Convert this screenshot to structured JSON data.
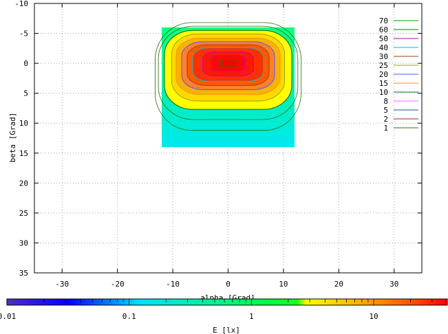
{
  "chart_data": {
    "type": "heatmap",
    "xlabel": "alpha [Grad]",
    "ylabel": "beta [Grad]",
    "xlim": [
      -35,
      35
    ],
    "ylim": [
      -10,
      35
    ],
    "y_reversed": true,
    "x_ticks": [
      -30,
      -20,
      -10,
      0,
      10,
      20,
      30
    ],
    "y_ticks": [
      -10,
      -5,
      0,
      5,
      10,
      15,
      20,
      25,
      30,
      35
    ],
    "grid": true,
    "data_extent": {
      "alpha": [
        -12,
        12
      ],
      "beta": [
        -6,
        14
      ]
    },
    "peak": {
      "alpha": 0,
      "beta": 0,
      "value": 70
    },
    "contour_levels": [
      70,
      60,
      50,
      40,
      30,
      25,
      20,
      15,
      10,
      8,
      5,
      2,
      1
    ],
    "legend": {
      "position": "top-right",
      "entries": [
        {
          "label": "70",
          "color": "#00a000"
        },
        {
          "label": "60",
          "color": "#008000"
        },
        {
          "label": "50",
          "color": "#c000c0"
        },
        {
          "label": "40",
          "color": "#00c0c0"
        },
        {
          "label": "30",
          "color": "#a04000"
        },
        {
          "label": "25",
          "color": "#a0a000"
        },
        {
          "label": "20",
          "color": "#4060ff"
        },
        {
          "label": "15",
          "color": "#e0a000"
        },
        {
          "label": "10",
          "color": "#007030"
        },
        {
          "label": "8",
          "color": "#ff60ff"
        },
        {
          "label": "5",
          "color": "#2050a0"
        },
        {
          "label": "2",
          "color": "#a02030"
        },
        {
          "label": "1",
          "color": "#207000"
        }
      ]
    },
    "colorbar": {
      "label": "E [lx]",
      "scale": "log",
      "range": [
        0.01,
        40
      ],
      "tick_labels": [
        "0.01",
        "0.1",
        "1",
        "10"
      ],
      "tick_values": [
        0.01,
        0.1,
        1,
        10
      ]
    }
  }
}
